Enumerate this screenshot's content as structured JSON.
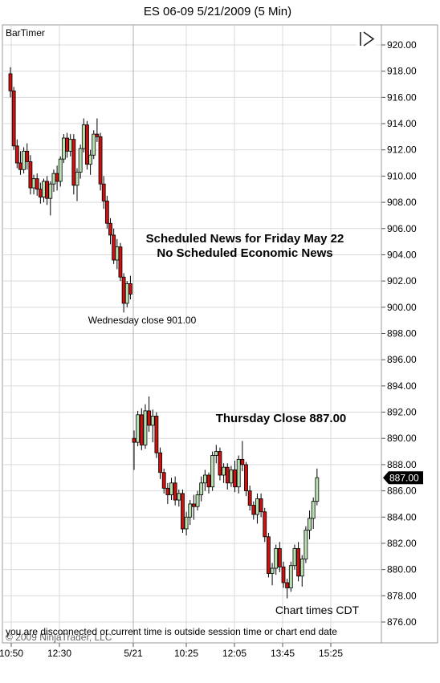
{
  "chart_data": {
    "type": "candlestick",
    "title": "ES 06-09  5/21/2009 (5 Min)",
    "indicator_label": "BarTimer",
    "y_ticks": [
      920,
      918,
      916,
      914,
      912,
      910,
      908,
      906,
      904,
      902,
      900,
      898,
      896,
      894,
      892,
      890,
      888,
      886,
      884,
      882,
      880,
      878,
      876
    ],
    "y_tick_labels": [
      "920.00",
      "918.00",
      "916.00",
      "914.00",
      "912.00",
      "910.00",
      "908.00",
      "906.00",
      "904.00",
      "902.00",
      "900.00",
      "898.00",
      "896.00",
      "894.00",
      "892.00",
      "890.00",
      "888.00",
      "886.00",
      "884.00",
      "882.00",
      "880.00",
      "878.00",
      "876.00"
    ],
    "ylim": [
      875.3,
      922.2
    ],
    "x_tick_labels": [
      "10:50",
      "12:30",
      "5/21",
      "10:25",
      "12:05",
      "13:45",
      "15:25"
    ],
    "grid": true,
    "last_price": 887.0,
    "last_price_label": "887.00",
    "colors": {
      "up": "#b8e0b0",
      "down": "#cc1111",
      "outline": "#000000",
      "grid": "#d9d9d9",
      "price_box": "#000000"
    },
    "annotations": {
      "news_line1": "Scheduled News for Friday May 22",
      "news_line2": "No Scheduled Economic News",
      "wednesday_close": "Wednesday close 901.00",
      "thursday_close": "Thursday Close 887.00",
      "times_note": "Chart times CDT",
      "status": "you are disconnected or current time is outside session time or chart end date",
      "copyright": "© 2009 NinjaTrader, LLC"
    },
    "session_1_bars": [
      [
        917.8,
        918.3,
        916.0,
        916.5
      ],
      [
        916.5,
        916.8,
        912.0,
        912.3
      ],
      [
        912.3,
        912.8,
        910.6,
        911.0
      ],
      [
        911.0,
        911.9,
        910.1,
        910.5
      ],
      [
        910.5,
        912.2,
        910.2,
        911.9
      ],
      [
        911.9,
        912.5,
        910.5,
        911.1
      ],
      [
        911.1,
        911.6,
        908.6,
        909.1
      ],
      [
        909.1,
        910.1,
        908.6,
        909.8
      ],
      [
        909.8,
        910.2,
        908.5,
        909.0
      ],
      [
        909.0,
        909.5,
        907.9,
        908.4
      ],
      [
        908.4,
        909.8,
        908.0,
        909.6
      ],
      [
        909.6,
        910.0,
        907.8,
        908.3
      ],
      [
        908.3,
        909.6,
        907.0,
        909.4
      ],
      [
        909.4,
        910.5,
        908.8,
        910.2
      ],
      [
        910.2,
        910.8,
        908.9,
        909.6
      ],
      [
        909.6,
        911.5,
        909.2,
        911.3
      ],
      [
        911.3,
        913.2,
        911.0,
        912.9
      ],
      [
        912.9,
        913.3,
        911.4,
        911.9
      ],
      [
        911.9,
        913.2,
        911.5,
        912.8
      ],
      [
        912.8,
        913.2,
        908.6,
        909.3
      ],
      [
        909.3,
        910.6,
        908.1,
        910.3
      ],
      [
        910.3,
        912.4,
        909.8,
        912.1
      ],
      [
        912.1,
        914.4,
        911.8,
        913.9
      ],
      [
        913.9,
        914.2,
        910.5,
        910.9
      ],
      [
        910.9,
        912.0,
        910.1,
        911.6
      ],
      [
        911.6,
        913.5,
        911.3,
        913.2
      ],
      [
        913.2,
        914.4,
        912.6,
        913.0
      ],
      [
        913.0,
        913.3,
        908.9,
        909.4
      ],
      [
        909.4,
        910.0,
        907.5,
        908.1
      ],
      [
        908.1,
        908.5,
        906.0,
        906.4
      ],
      [
        906.4,
        906.8,
        904.8,
        905.5
      ],
      [
        905.5,
        906.0,
        903.3,
        903.6
      ],
      [
        903.6,
        905.2,
        902.9,
        904.6
      ],
      [
        904.6,
        904.9,
        902.0,
        902.3
      ],
      [
        902.3,
        902.6,
        899.6,
        900.3
      ],
      [
        900.3,
        902.0,
        900.0,
        901.8
      ],
      [
        901.8,
        902.4,
        900.6,
        901.0
      ]
    ],
    "session_2_bars": [
      [
        890.0,
        890.6,
        887.6,
        889.7
      ],
      [
        889.7,
        892.1,
        889.4,
        891.8
      ],
      [
        891.8,
        892.3,
        889.1,
        889.5
      ],
      [
        889.5,
        892.6,
        889.2,
        892.1
      ],
      [
        892.1,
        893.2,
        890.5,
        891.0
      ],
      [
        891.0,
        892.2,
        889.7,
        891.7
      ],
      [
        891.7,
        892.0,
        888.5,
        888.9
      ],
      [
        888.9,
        889.3,
        886.9,
        887.4
      ],
      [
        887.4,
        887.7,
        885.8,
        886.2
      ],
      [
        886.2,
        886.6,
        885.0,
        885.7
      ],
      [
        885.7,
        887.0,
        885.3,
        886.6
      ],
      [
        886.6,
        887.1,
        884.9,
        885.3
      ],
      [
        885.3,
        886.1,
        884.8,
        885.8
      ],
      [
        885.8,
        886.1,
        882.8,
        883.1
      ],
      [
        883.1,
        884.4,
        882.6,
        884.0
      ],
      [
        884.0,
        885.3,
        883.4,
        885.0
      ],
      [
        885.0,
        885.7,
        883.8,
        884.8
      ],
      [
        884.8,
        886.0,
        884.5,
        885.7
      ],
      [
        885.7,
        887.1,
        885.2,
        886.6
      ],
      [
        886.6,
        887.6,
        886.0,
        887.2
      ],
      [
        887.2,
        887.4,
        885.8,
        886.3
      ],
      [
        886.3,
        889.0,
        886.0,
        888.7
      ],
      [
        888.7,
        889.5,
        888.1,
        889.0
      ],
      [
        889.0,
        889.3,
        886.8,
        887.2
      ],
      [
        887.2,
        888.1,
        886.6,
        887.8
      ],
      [
        887.8,
        888.1,
        886.1,
        886.6
      ],
      [
        886.6,
        887.9,
        886.3,
        887.6
      ],
      [
        887.6,
        888.3,
        885.9,
        886.3
      ],
      [
        886.3,
        888.7,
        885.8,
        888.4
      ],
      [
        888.4,
        889.8,
        887.5,
        888.0
      ],
      [
        888.0,
        888.2,
        885.6,
        886.0
      ],
      [
        886.0,
        886.4,
        884.5,
        884.9
      ],
      [
        884.9,
        885.2,
        883.8,
        884.2
      ],
      [
        884.2,
        885.8,
        883.5,
        885.4
      ],
      [
        885.4,
        885.8,
        884.0,
        884.4
      ],
      [
        884.4,
        884.7,
        882.1,
        882.5
      ],
      [
        882.5,
        882.8,
        879.4,
        879.7
      ],
      [
        879.7,
        880.5,
        878.8,
        880.1
      ],
      [
        880.1,
        881.9,
        879.6,
        881.6
      ],
      [
        881.6,
        882.1,
        879.8,
        880.2
      ],
      [
        880.2,
        880.6,
        878.6,
        879.0
      ],
      [
        879.0,
        879.3,
        877.8,
        878.6
      ],
      [
        878.6,
        880.6,
        878.3,
        880.3
      ],
      [
        880.3,
        881.9,
        880.0,
        881.6
      ],
      [
        881.6,
        882.1,
        879.1,
        879.5
      ],
      [
        879.5,
        881.1,
        878.7,
        880.8
      ],
      [
        880.8,
        883.3,
        880.5,
        883.0
      ],
      [
        883.0,
        884.5,
        882.3,
        883.9
      ],
      [
        883.9,
        885.5,
        883.1,
        885.2
      ],
      [
        885.2,
        887.7,
        884.9,
        887.0
      ]
    ]
  }
}
